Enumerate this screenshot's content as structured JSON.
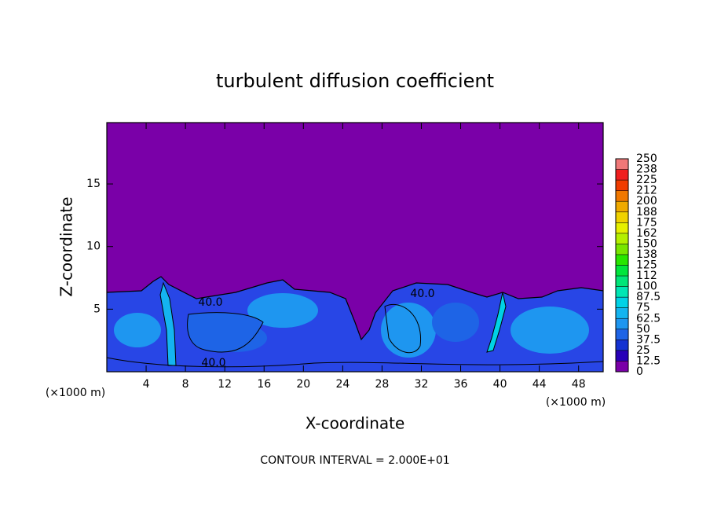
{
  "chart_data": {
    "type": "contour",
    "title": "turbulent diffusion coefficient",
    "xlabel": "X-coordinate",
    "ylabel": "Z-coordinate",
    "xunit": "(×1000 m)",
    "yunit": "(×1000 m)",
    "xlim": [
      0,
      50.5
    ],
    "ylim": [
      0,
      19.9
    ],
    "xticks": [
      4,
      8,
      12,
      16,
      20,
      24,
      28,
      32,
      36,
      40,
      44,
      48
    ],
    "yticks": [
      5,
      10,
      15
    ],
    "contour_labels": [
      "40.0",
      "40.0",
      "40.0"
    ],
    "footer": "CONTOUR INTERVAL = 2.000E+01",
    "colorbar": {
      "ticks": [
        0,
        12.5,
        25,
        37.5,
        50,
        62.5,
        75,
        87.5,
        100,
        {
          "value": 112.5,
          "label": "112"
        },
        125,
        {
          "value": 137.5,
          "label": "138"
        },
        150,
        {
          "value": 162.5,
          "label": "162"
        },
        175,
        {
          "value": 187.5,
          "label": "188"
        },
        200,
        {
          "value": 212.5,
          "label": "212"
        },
        225,
        {
          "value": 237.5,
          "label": "238"
        },
        250
      ],
      "colors": [
        "#7a00a8",
        "#2800b8",
        "#1432d2",
        "#1e64e6",
        "#1e96f0",
        "#14b4f0",
        "#00d2e6",
        "#00e6b4",
        "#00e678",
        "#00e63c",
        "#28e600",
        "#78e600",
        "#b4f000",
        "#e6f000",
        "#f0d200",
        "#f0aa00",
        "#f07800",
        "#f03c00",
        "#f01e1e",
        "#f07878"
      ]
    }
  }
}
